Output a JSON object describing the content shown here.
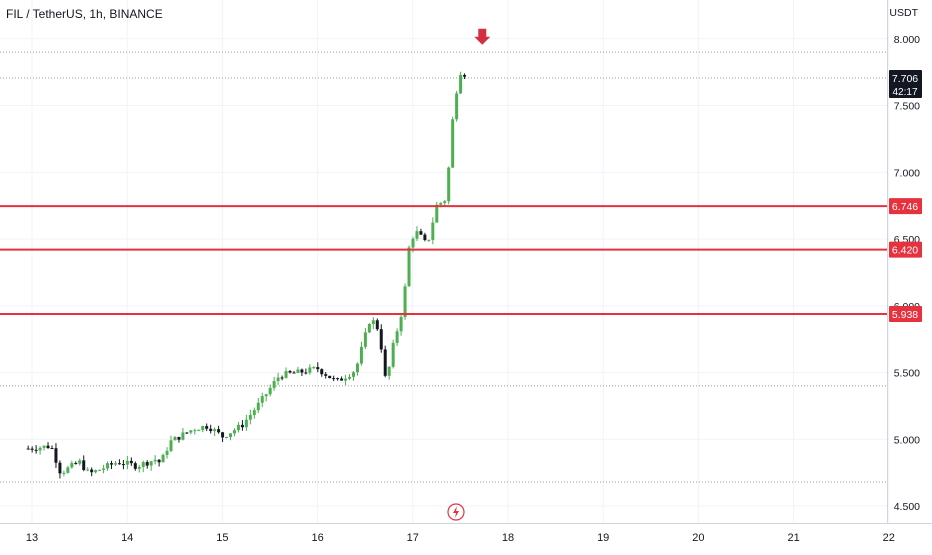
{
  "chart_data": {
    "type": "candlestick",
    "title": "FIL / TetherUS, 1h, BINANCE",
    "currency": "USDT",
    "y_range": [
      4.4,
      8.1
    ],
    "y_ticks": [
      {
        "value": 4.5,
        "label": "4.500"
      },
      {
        "value": 5.0,
        "label": "5.000"
      },
      {
        "value": 5.5,
        "label": "5.500"
      },
      {
        "value": 6.0,
        "label": "6.000"
      },
      {
        "value": 6.5,
        "label": "6.500"
      },
      {
        "value": 7.0,
        "label": "7.000"
      },
      {
        "value": 7.5,
        "label": "7.500"
      },
      {
        "value": 8.0,
        "label": "8.000"
      }
    ],
    "x_range": [
      12.96,
      22.0
    ],
    "x_ticks": [
      {
        "value": 13,
        "label": "13"
      },
      {
        "value": 14,
        "label": "14"
      },
      {
        "value": 15,
        "label": "15"
      },
      {
        "value": 16,
        "label": "16"
      },
      {
        "value": 17,
        "label": "17"
      },
      {
        "value": 18,
        "label": "18"
      },
      {
        "value": 19,
        "label": "19"
      },
      {
        "value": 20,
        "label": "20"
      },
      {
        "value": 21,
        "label": "21"
      },
      {
        "value": 22,
        "label": "22"
      }
    ],
    "current_price": {
      "value": 7.706,
      "label": "7.706",
      "countdown": "42:17"
    },
    "resistance_lines": [
      {
        "value": 6.746,
        "label": "6.746"
      },
      {
        "value": 6.42,
        "label": "6.420"
      },
      {
        "value": 5.938,
        "label": "5.938"
      }
    ],
    "dotted_levels": [
      7.9,
      7.706,
      5.4,
      4.68
    ],
    "marker_arrow": {
      "x": 17.73,
      "y": 8.0,
      "direction": "down"
    },
    "bar_interval_days": 0.04167,
    "colors": {
      "up": "#4caf50",
      "down": "#131722",
      "resistance": "#e5323e",
      "arrow": "#d32f3f",
      "text": "#131722",
      "grid": "#f0f3fa"
    },
    "candles_anchor": {
      "start_day": 12.96,
      "close_path": [
        [
          12.96,
          4.93
        ],
        [
          13.2,
          4.95
        ],
        [
          13.3,
          4.75
        ],
        [
          13.5,
          4.83
        ],
        [
          13.6,
          4.74
        ],
        [
          13.9,
          4.83
        ],
        [
          14.1,
          4.8
        ],
        [
          14.3,
          4.85
        ],
        [
          14.35,
          4.82
        ],
        [
          14.45,
          4.98
        ],
        [
          14.7,
          5.08
        ],
        [
          14.85,
          5.1
        ],
        [
          15.0,
          5.02
        ],
        [
          15.2,
          5.1
        ],
        [
          15.4,
          5.28
        ],
        [
          15.6,
          5.48
        ],
        [
          15.8,
          5.5
        ],
        [
          16.0,
          5.53
        ],
        [
          16.2,
          5.43
        ],
        [
          16.4,
          5.52
        ],
        [
          16.55,
          5.9
        ],
        [
          16.62,
          5.86
        ],
        [
          16.68,
          5.65
        ],
        [
          16.72,
          5.4
        ],
        [
          16.78,
          5.66
        ],
        [
          16.9,
          6.0
        ],
        [
          16.97,
          6.5
        ],
        [
          17.05,
          6.55
        ],
        [
          17.15,
          6.45
        ],
        [
          17.25,
          6.75
        ],
        [
          17.35,
          6.8
        ],
        [
          17.42,
          7.4
        ],
        [
          17.48,
          7.72
        ],
        [
          17.52,
          7.78
        ],
        [
          17.56,
          7.706
        ]
      ]
    }
  },
  "ui": {
    "boost_icon": "lightning-icon"
  }
}
